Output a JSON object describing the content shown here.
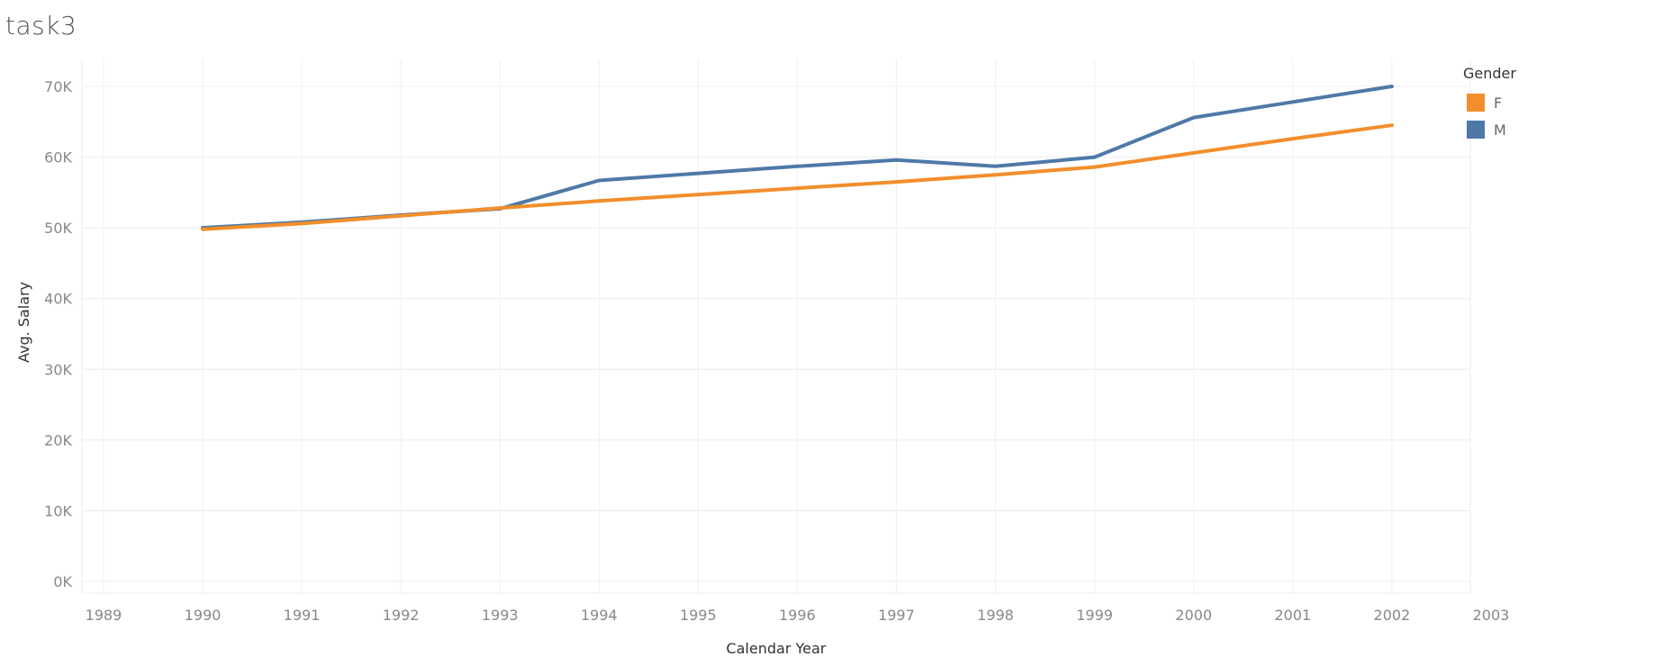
{
  "title": "task3",
  "legend": {
    "title": "Gender",
    "items": [
      {
        "label": "F",
        "color": "#f28e2b"
      },
      {
        "label": "M",
        "color": "#4e79a7"
      }
    ]
  },
  "chart_data": {
    "type": "line",
    "title": "task3",
    "xlabel": "Calendar Year",
    "ylabel": "Avg. Salary",
    "x_ticks": [
      "1989",
      "1990",
      "1991",
      "1992",
      "1993",
      "1994",
      "1995",
      "1996",
      "1997",
      "1998",
      "1999",
      "2000",
      "2001",
      "2002",
      "2003"
    ],
    "y_ticks": [
      "0K",
      "10K",
      "20K",
      "30K",
      "40K",
      "50K",
      "60K",
      "70K"
    ],
    "xlim": [
      1989,
      2003
    ],
    "ylim": [
      0,
      73500
    ],
    "grid": true,
    "legend_position": "right",
    "x": [
      1990,
      1991,
      1992,
      1993,
      1994,
      1995,
      1996,
      1997,
      1998,
      1999,
      2000,
      2001,
      2002
    ],
    "series": [
      {
        "name": "M",
        "color": "#4e79a7",
        "values": [
          50000,
          50800,
          51800,
          52700,
          56700,
          57700,
          58700,
          59600,
          58700,
          60000,
          65600,
          67800,
          70000
        ]
      },
      {
        "name": "F",
        "color": "#f28e2b",
        "values": [
          49800,
          50600,
          51700,
          52800,
          53800,
          54700,
          55600,
          56500,
          57500,
          58600,
          60600,
          62600,
          64500
        ]
      }
    ]
  }
}
